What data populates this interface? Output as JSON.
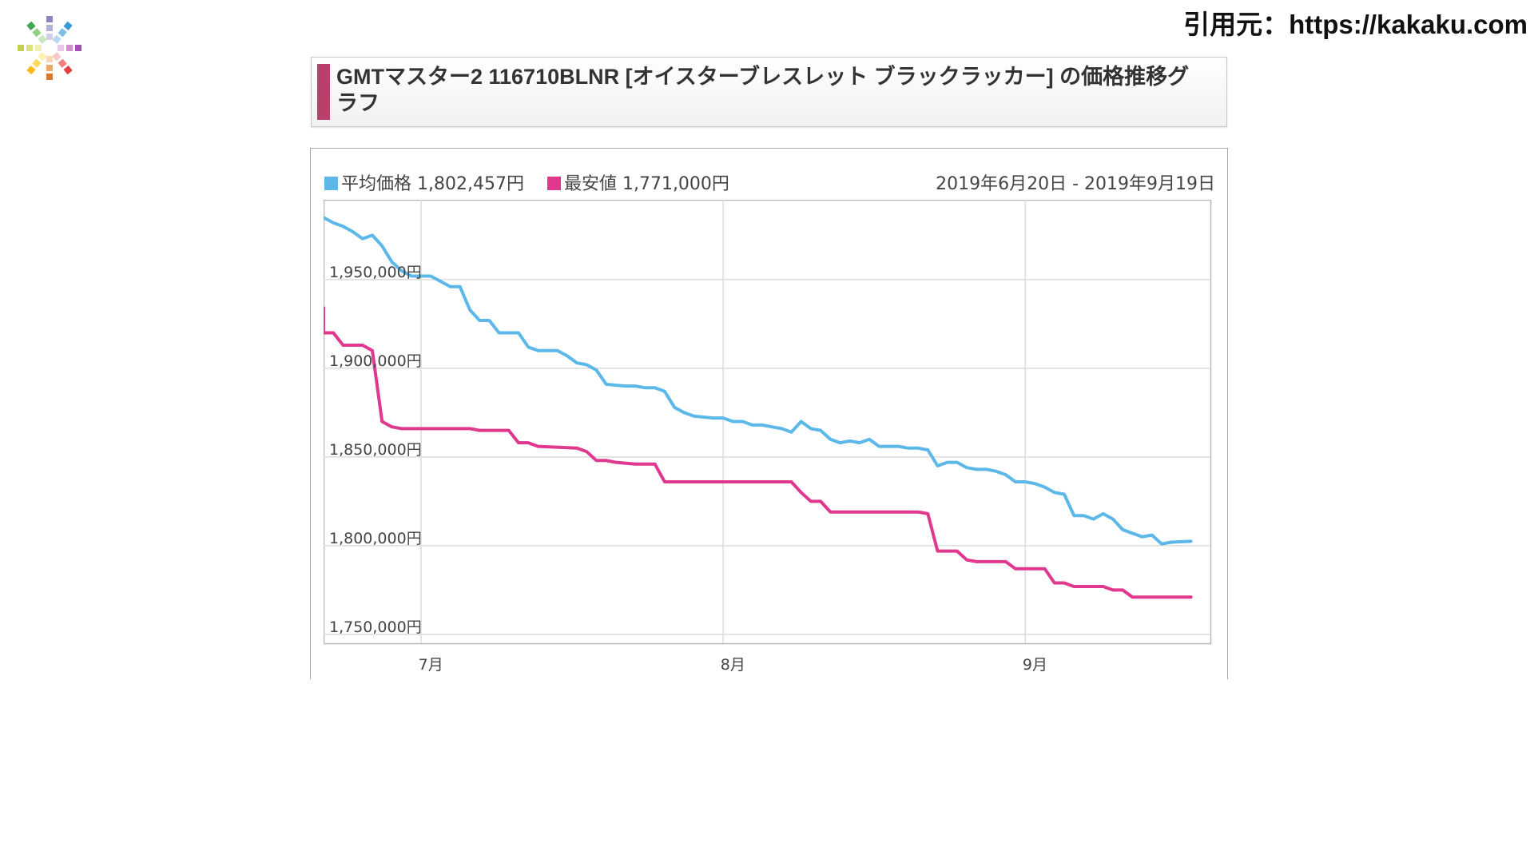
{
  "source_text": "引用元：https://kakaku.com",
  "title": "GMTマスター2 116710BLNR [オイスターブレスレット ブラックラッカー] の価格推移グラフ",
  "legend": {
    "avg_label": "平均価格 1,802,457円",
    "min_label": "最安値 1,771,000円"
  },
  "date_range": "2019年6月20日 - 2019年9月19日",
  "colors": {
    "avg": "#5bb8e8",
    "min": "#e0388e",
    "title_accent": "#b8406a",
    "grid": "#dcdcdc"
  },
  "chart_data": {
    "type": "line",
    "title": "",
    "xlabel": "",
    "ylabel": "",
    "ylim": [
      1745000,
      1995000
    ],
    "y_ticks": [
      1750000,
      1800000,
      1850000,
      1900000,
      1950000
    ],
    "y_tick_labels": [
      "1,750,000円",
      "1,800,000円",
      "1,850,000円",
      "1,900,000円",
      "1,950,000円"
    ],
    "x_range": [
      "2019-06-20",
      "2019-09-19"
    ],
    "x_ticks": [
      {
        "date": "2019-07-01",
        "label": "7月"
      },
      {
        "date": "2019-08-01",
        "label": "8月"
      },
      {
        "date": "2019-09-01",
        "label": "9月"
      }
    ],
    "grid_dates": [
      "2019-06-30",
      "2019-07-31",
      "2019-08-31"
    ],
    "series": [
      {
        "name": "平均価格",
        "color": "#5bb8e8",
        "points": [
          [
            "2019-06-20",
            1985000
          ],
          [
            "2019-06-21",
            1982000
          ],
          [
            "2019-06-22",
            1980000
          ],
          [
            "2019-06-23",
            1977000
          ],
          [
            "2019-06-24",
            1973000
          ],
          [
            "2019-06-25",
            1975000
          ],
          [
            "2019-06-26",
            1969000
          ],
          [
            "2019-06-27",
            1960000
          ],
          [
            "2019-06-28",
            1955000
          ],
          [
            "2019-06-29",
            1952000
          ],
          [
            "2019-07-01",
            1952000
          ],
          [
            "2019-07-02",
            1949000
          ],
          [
            "2019-07-03",
            1946000
          ],
          [
            "2019-07-04",
            1946000
          ],
          [
            "2019-07-05",
            1933000
          ],
          [
            "2019-07-06",
            1927000
          ],
          [
            "2019-07-07",
            1927000
          ],
          [
            "2019-07-08",
            1920000
          ],
          [
            "2019-07-10",
            1920000
          ],
          [
            "2019-07-11",
            1912000
          ],
          [
            "2019-07-12",
            1910000
          ],
          [
            "2019-07-14",
            1910000
          ],
          [
            "2019-07-15",
            1907000
          ],
          [
            "2019-07-16",
            1903000
          ],
          [
            "2019-07-17",
            1902000
          ],
          [
            "2019-07-18",
            1899000
          ],
          [
            "2019-07-19",
            1891000
          ],
          [
            "2019-07-21",
            1890000
          ],
          [
            "2019-07-22",
            1890000
          ],
          [
            "2019-07-23",
            1889000
          ],
          [
            "2019-07-24",
            1889000
          ],
          [
            "2019-07-25",
            1887000
          ],
          [
            "2019-07-26",
            1878000
          ],
          [
            "2019-07-27",
            1875000
          ],
          [
            "2019-07-28",
            1873000
          ],
          [
            "2019-07-30",
            1872000
          ],
          [
            "2019-07-31",
            1872000
          ],
          [
            "2019-08-01",
            1870000
          ],
          [
            "2019-08-02",
            1870000
          ],
          [
            "2019-08-03",
            1868000
          ],
          [
            "2019-08-04",
            1868000
          ],
          [
            "2019-08-05",
            1867000
          ],
          [
            "2019-08-06",
            1866000
          ],
          [
            "2019-08-07",
            1864000
          ],
          [
            "2019-08-08",
            1870000
          ],
          [
            "2019-08-09",
            1866000
          ],
          [
            "2019-08-10",
            1865000
          ],
          [
            "2019-08-11",
            1860000
          ],
          [
            "2019-08-12",
            1858000
          ],
          [
            "2019-08-13",
            1859000
          ],
          [
            "2019-08-14",
            1858000
          ],
          [
            "2019-08-15",
            1860000
          ],
          [
            "2019-08-16",
            1856000
          ],
          [
            "2019-08-18",
            1856000
          ],
          [
            "2019-08-19",
            1855000
          ],
          [
            "2019-08-20",
            1855000
          ],
          [
            "2019-08-21",
            1854000
          ],
          [
            "2019-08-22",
            1845000
          ],
          [
            "2019-08-23",
            1847000
          ],
          [
            "2019-08-24",
            1847000
          ],
          [
            "2019-08-25",
            1844000
          ],
          [
            "2019-08-26",
            1843000
          ],
          [
            "2019-08-27",
            1843000
          ],
          [
            "2019-08-28",
            1842000
          ],
          [
            "2019-08-29",
            1840000
          ],
          [
            "2019-08-30",
            1836000
          ],
          [
            "2019-08-31",
            1836000
          ],
          [
            "2019-09-01",
            1835000
          ],
          [
            "2019-09-02",
            1833000
          ],
          [
            "2019-09-03",
            1830000
          ],
          [
            "2019-09-04",
            1829000
          ],
          [
            "2019-09-05",
            1817000
          ],
          [
            "2019-09-06",
            1817000
          ],
          [
            "2019-09-07",
            1815000
          ],
          [
            "2019-09-08",
            1818000
          ],
          [
            "2019-09-09",
            1815000
          ],
          [
            "2019-09-10",
            1809000
          ],
          [
            "2019-09-11",
            1807000
          ],
          [
            "2019-09-12",
            1805000
          ],
          [
            "2019-09-13",
            1806000
          ],
          [
            "2019-09-14",
            1801000
          ],
          [
            "2019-09-15",
            1802000
          ],
          [
            "2019-09-17",
            1802457
          ]
        ]
      },
      {
        "name": "最安値",
        "color": "#e0388e",
        "points": [
          [
            "2019-06-20",
            1934000
          ],
          [
            "2019-06-20",
            1920000
          ],
          [
            "2019-06-21",
            1920000
          ],
          [
            "2019-06-22",
            1913000
          ],
          [
            "2019-06-24",
            1913000
          ],
          [
            "2019-06-25",
            1910000
          ],
          [
            "2019-06-26",
            1870000
          ],
          [
            "2019-06-27",
            1867000
          ],
          [
            "2019-06-28",
            1866000
          ],
          [
            "2019-07-05",
            1866000
          ],
          [
            "2019-07-06",
            1865000
          ],
          [
            "2019-07-09",
            1865000
          ],
          [
            "2019-07-10",
            1858000
          ],
          [
            "2019-07-11",
            1858000
          ],
          [
            "2019-07-12",
            1856000
          ],
          [
            "2019-07-16",
            1855000
          ],
          [
            "2019-07-17",
            1853000
          ],
          [
            "2019-07-18",
            1848000
          ],
          [
            "2019-07-19",
            1848000
          ],
          [
            "2019-07-20",
            1847000
          ],
          [
            "2019-07-22",
            1846000
          ],
          [
            "2019-07-24",
            1846000
          ],
          [
            "2019-07-25",
            1836000
          ],
          [
            "2019-08-07",
            1836000
          ],
          [
            "2019-08-08",
            1830000
          ],
          [
            "2019-08-09",
            1825000
          ],
          [
            "2019-08-10",
            1825000
          ],
          [
            "2019-08-11",
            1819000
          ],
          [
            "2019-08-20",
            1819000
          ],
          [
            "2019-08-21",
            1818000
          ],
          [
            "2019-08-22",
            1797000
          ],
          [
            "2019-08-24",
            1797000
          ],
          [
            "2019-08-25",
            1792000
          ],
          [
            "2019-08-26",
            1791000
          ],
          [
            "2019-08-29",
            1791000
          ],
          [
            "2019-08-30",
            1787000
          ],
          [
            "2019-09-02",
            1787000
          ],
          [
            "2019-09-03",
            1779000
          ],
          [
            "2019-09-04",
            1779000
          ],
          [
            "2019-09-05",
            1777000
          ],
          [
            "2019-09-08",
            1777000
          ],
          [
            "2019-09-09",
            1775000
          ],
          [
            "2019-09-10",
            1775000
          ],
          [
            "2019-09-11",
            1771000
          ],
          [
            "2019-09-17",
            1771000
          ]
        ]
      }
    ]
  }
}
